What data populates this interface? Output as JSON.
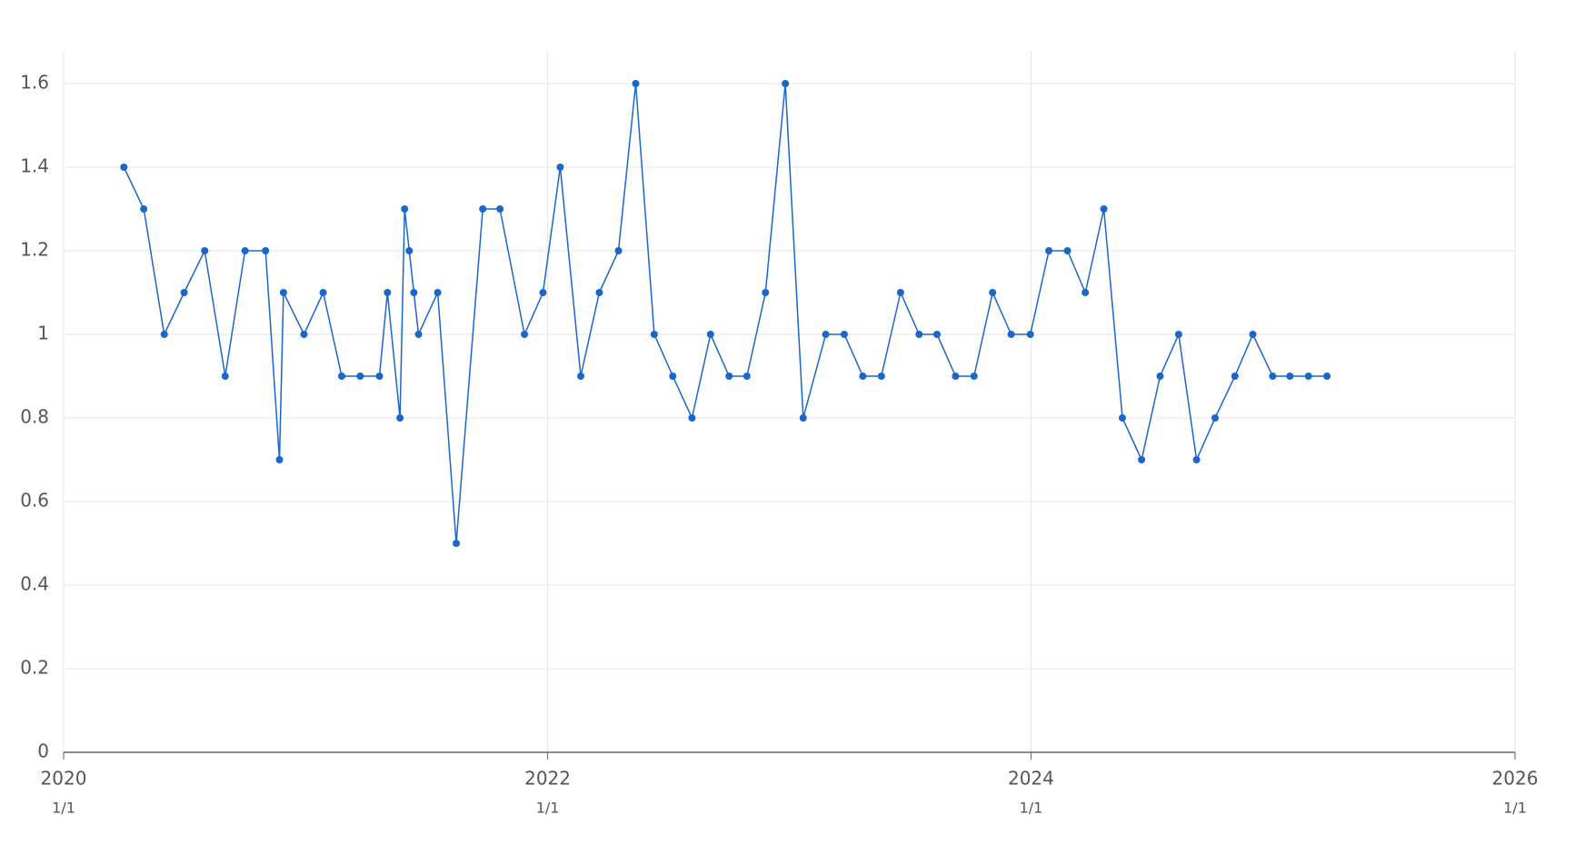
{
  "chart_data": {
    "type": "line",
    "x": [
      "2020-04-01",
      "2020-05-01",
      "2020-06-01",
      "2020-07-01",
      "2020-08-01",
      "2020-09-01",
      "2020-10-01",
      "2020-11-01",
      "2020-11-22",
      "2020-11-28",
      "2020-12-29",
      "2021-01-27",
      "2021-02-24",
      "2021-03-24",
      "2021-04-22",
      "2021-05-04",
      "2021-05-23",
      "2021-05-30",
      "2021-06-06",
      "2021-06-13",
      "2021-06-20",
      "2021-07-19",
      "2021-08-16",
      "2021-09-25",
      "2021-10-21",
      "2021-11-27",
      "2021-12-25",
      "2022-01-20",
      "2022-02-20",
      "2022-03-20",
      "2022-04-18",
      "2022-05-14",
      "2022-06-11",
      "2022-07-09",
      "2022-08-07",
      "2022-09-04",
      "2022-10-02",
      "2022-10-29",
      "2022-11-26",
      "2022-12-26",
      "2023-01-22",
      "2023-02-25",
      "2023-03-25",
      "2023-04-22",
      "2023-05-20",
      "2023-06-18",
      "2023-07-16",
      "2023-08-12",
      "2023-09-09",
      "2023-10-07",
      "2023-11-04",
      "2023-12-02",
      "2023-12-31",
      "2024-01-28",
      "2024-02-25",
      "2024-03-23",
      "2024-04-20",
      "2024-05-18",
      "2024-06-16",
      "2024-07-14",
      "2024-08-11",
      "2024-09-07",
      "2024-10-05",
      "2024-11-04",
      "2024-12-01",
      "2024-12-31",
      "2025-01-26",
      "2025-02-23",
      "2025-03-23"
    ],
    "series": [
      {
        "color": "#1a66cc",
        "values": [
          1.4,
          1.3,
          1.0,
          1.1,
          1.2,
          0.9,
          1.2,
          1.2,
          0.7,
          1.1,
          1.0,
          1.1,
          0.9,
          0.9,
          0.9,
          1.1,
          0.8,
          1.3,
          1.2,
          1.1,
          1.0,
          1.1,
          0.5,
          1.3,
          1.3,
          1.0,
          1.1,
          1.4,
          0.9,
          1.1,
          1.2,
          1.6,
          1.0,
          0.9,
          0.8,
          1.0,
          0.9,
          0.9,
          1.1,
          1.6,
          0.8,
          1.0,
          1.0,
          0.9,
          0.9,
          1.1,
          1.0,
          1.0,
          0.9,
          0.9,
          1.1,
          1.0,
          1.0,
          1.2,
          1.2,
          1.1,
          1.3,
          0.8,
          0.7,
          0.9,
          1.0,
          0.7,
          0.8,
          0.9,
          1.0,
          0.9,
          0.9,
          0.9,
          0.9
        ]
      }
    ],
    "xlim": [
      "2020-01-01",
      "2026-01-01"
    ],
    "xticks": [
      {
        "value": "2020-01-01",
        "label": "2020",
        "sublabel": "1/1"
      },
      {
        "value": "2022-01-01",
        "label": "2022",
        "sublabel": "1/1"
      },
      {
        "value": "2024-01-01",
        "label": "2024",
        "sublabel": "1/1"
      },
      {
        "value": "2026-01-01",
        "label": "2026",
        "sublabel": "1/1"
      }
    ],
    "ylim": [
      0,
      1.6
    ],
    "yticks": [
      0,
      0.2,
      0.4,
      0.6,
      0.8,
      1,
      1.2,
      1.4,
      1.6
    ],
    "grid": true
  }
}
